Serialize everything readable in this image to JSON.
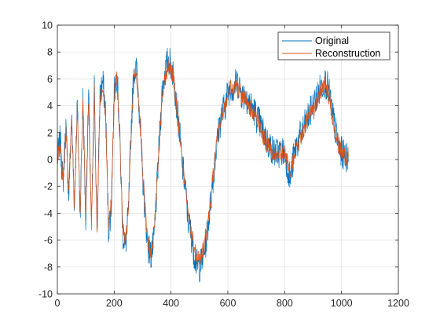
{
  "chart_data": {
    "type": "line",
    "title": "",
    "xlabel": "",
    "ylabel": "",
    "xlim": [
      0,
      1200
    ],
    "ylim": [
      -10,
      10
    ],
    "xticks": [
      0,
      200,
      400,
      600,
      800,
      1000,
      1200
    ],
    "yticks": [
      -10,
      -8,
      -6,
      -4,
      -2,
      0,
      2,
      4,
      6,
      8,
      10
    ],
    "grid": true,
    "legend_position": "top-right",
    "series": [
      {
        "name": "Original",
        "color": "#0072BD",
        "x": [
          0,
          10,
          20,
          30,
          40,
          50,
          60,
          70,
          80,
          90,
          100,
          110,
          120,
          130,
          140,
          150,
          160,
          170,
          180,
          190,
          200,
          210,
          220,
          230,
          240,
          250,
          260,
          270,
          280,
          290,
          300,
          310,
          320,
          330,
          340,
          350,
          360,
          370,
          380,
          390,
          400,
          410,
          420,
          430,
          440,
          450,
          460,
          470,
          480,
          490,
          500,
          510,
          520,
          530,
          540,
          550,
          560,
          570,
          580,
          590,
          600,
          610,
          620,
          630,
          640,
          650,
          660,
          670,
          680,
          690,
          700,
          710,
          720,
          730,
          740,
          750,
          760,
          770,
          780,
          790,
          800,
          810,
          820,
          830,
          840,
          850,
          860,
          870,
          880,
          890,
          900,
          910,
          920,
          930,
          940,
          950,
          960,
          970,
          980,
          990,
          1000,
          1010,
          1020,
          1024
        ],
        "values": [
          0.0,
          1.5,
          -1.8,
          2.5,
          -2.8,
          3.2,
          -3.5,
          4.2,
          -4.0,
          4.5,
          -4.6,
          5.0,
          -5.2,
          5.3,
          -5.5,
          4.8,
          5.8,
          3.5,
          -5.2,
          -3.5,
          5.0,
          6.5,
          1.5,
          -5.5,
          -6.5,
          -4.0,
          2.5,
          6.8,
          6.5,
          3.2,
          -1.2,
          -4.5,
          -6.5,
          -7.2,
          -6.0,
          -2.2,
          1.8,
          5.5,
          6.5,
          7.5,
          7.0,
          6.2,
          4.0,
          2.0,
          -0.5,
          -2.0,
          -4.5,
          -5.5,
          -6.8,
          -7.8,
          -8.0,
          -7.5,
          -6.5,
          -5.0,
          -3.0,
          -1.0,
          1.0,
          2.5,
          3.5,
          4.0,
          5.0,
          5.5,
          5.2,
          5.8,
          5.5,
          4.8,
          4.8,
          4.5,
          4.0,
          3.8,
          3.2,
          2.8,
          2.2,
          1.8,
          1.2,
          1.0,
          0.6,
          0.5,
          0.5,
          0.6,
          0.5,
          -0.5,
          -1.5,
          0.0,
          1.0,
          1.5,
          2.0,
          2.5,
          3.0,
          3.5,
          4.0,
          4.5,
          5.0,
          5.5,
          5.8,
          5.5,
          4.5,
          3.2,
          2.0,
          1.0,
          0.5,
          0.3,
          0.2,
          0.5
        ],
        "noise_amplitude": 1.2
      },
      {
        "name": "Reconstruction",
        "color": "#D95319",
        "x": [
          0,
          10,
          20,
          30,
          40,
          50,
          60,
          70,
          80,
          90,
          100,
          110,
          120,
          130,
          140,
          150,
          160,
          170,
          180,
          190,
          200,
          210,
          220,
          230,
          240,
          250,
          260,
          270,
          280,
          290,
          300,
          310,
          320,
          330,
          340,
          350,
          360,
          370,
          380,
          390,
          400,
          410,
          420,
          430,
          440,
          450,
          460,
          470,
          480,
          490,
          500,
          510,
          520,
          530,
          540,
          550,
          560,
          570,
          580,
          590,
          600,
          610,
          620,
          630,
          640,
          650,
          660,
          670,
          680,
          690,
          700,
          710,
          720,
          730,
          740,
          750,
          760,
          770,
          780,
          790,
          800,
          810,
          820,
          830,
          840,
          850,
          860,
          870,
          880,
          890,
          900,
          910,
          920,
          930,
          940,
          950,
          960,
          970,
          980,
          990,
          1000,
          1010,
          1020,
          1024
        ],
        "values": [
          0.0,
          1.2,
          -1.5,
          2.2,
          -2.5,
          3.0,
          -3.2,
          4.0,
          -3.8,
          4.3,
          -4.4,
          4.8,
          -5.0,
          5.0,
          -5.3,
          4.5,
          5.5,
          3.2,
          -5.0,
          -3.2,
          4.8,
          6.2,
          1.2,
          -5.2,
          -6.2,
          -3.8,
          2.2,
          6.5,
          6.2,
          3.0,
          -1.0,
          -4.2,
          -6.2,
          -6.8,
          -5.8,
          -2.0,
          1.5,
          5.2,
          6.2,
          7.0,
          6.7,
          6.0,
          3.8,
          1.8,
          -0.3,
          -1.8,
          -4.2,
          -5.2,
          -6.5,
          -7.3,
          -7.5,
          -7.0,
          -6.2,
          -4.8,
          -2.8,
          -0.8,
          1.0,
          2.3,
          3.3,
          3.8,
          4.8,
          5.3,
          5.0,
          5.5,
          5.2,
          4.6,
          4.6,
          4.3,
          3.8,
          3.6,
          3.0,
          2.6,
          2.0,
          1.6,
          1.1,
          0.9,
          0.6,
          0.5,
          0.5,
          0.6,
          0.5,
          -0.3,
          -1.2,
          0.0,
          0.9,
          1.4,
          1.9,
          2.4,
          2.9,
          3.3,
          3.8,
          4.3,
          4.8,
          5.2,
          5.5,
          5.2,
          4.3,
          3.0,
          1.9,
          1.0,
          0.5,
          0.3,
          0.2,
          0.5
        ],
        "noise_amplitude": 0.7
      }
    ]
  }
}
